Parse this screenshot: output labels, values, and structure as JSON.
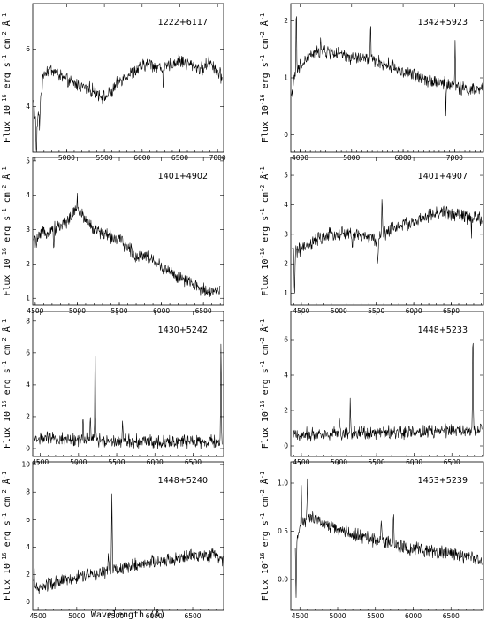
{
  "figure": {
    "y_axis_label": "Flux 10^-16 erg s^-1 cm^-2 Å^-1",
    "x_axis_label": "Wavelength (Å)"
  },
  "chart_data": [
    {
      "type": "line",
      "title": "1222+6117",
      "xlim": [
        4550,
        7080
      ],
      "ylim": [
        2.4,
        7.6
      ],
      "xticks": [
        5000,
        5500,
        6000,
        6500,
        7000
      ],
      "yticks": [
        4,
        6
      ],
      "x_tick_labels_shown": true,
      "series": [
        {
          "x": [
            4560,
            4600,
            4700,
            4800,
            4900,
            5000,
            5100,
            5200,
            5300,
            5400,
            5500,
            5600,
            5700,
            5800,
            5900,
            6000,
            6100,
            6200,
            6300,
            6400,
            6500,
            6600,
            6700,
            6800,
            6900,
            7000,
            7060
          ],
          "y": [
            4.2,
            3.2,
            5.2,
            5.3,
            5.1,
            4.9,
            4.8,
            4.7,
            4.6,
            4.5,
            4.3,
            4.5,
            4.9,
            5.1,
            5.2,
            5.4,
            5.5,
            5.4,
            5.3,
            5.5,
            5.6,
            5.5,
            5.4,
            5.3,
            5.6,
            5.2,
            5.0
          ]
        }
      ],
      "features": [
        {
          "x": 4600,
          "d": -1.4
        },
        {
          "x": 4640,
          "d": -0.8
        },
        {
          "x": 6280,
          "d": -0.5
        }
      ]
    },
    {
      "type": "line",
      "title": "1342+5923",
      "xlim": [
        3820,
        7560
      ],
      "ylim": [
        -0.3,
        2.3
      ],
      "xticks": [
        4000,
        5000,
        6000,
        7000
      ],
      "yticks": [
        0,
        1,
        2
      ],
      "x_tick_labels_shown": true,
      "series": [
        {
          "x": [
            3830,
            3900,
            4000,
            4200,
            4400,
            4600,
            4800,
            5000,
            5200,
            5400,
            5600,
            5800,
            6000,
            6200,
            6400,
            6600,
            6800,
            7000,
            7200,
            7400,
            7540
          ],
          "y": [
            0.7,
            1.0,
            1.2,
            1.4,
            1.45,
            1.45,
            1.4,
            1.35,
            1.35,
            1.3,
            1.25,
            1.2,
            1.1,
            1.05,
            1.0,
            0.95,
            0.9,
            0.85,
            0.8,
            0.78,
            0.8
          ]
        }
      ],
      "features": [
        {
          "x": 3927,
          "d": 1.2
        },
        {
          "x": 5369,
          "d": 0.6
        },
        {
          "x": 7011,
          "d": 0.8
        },
        {
          "x": 4400,
          "d": 0.3
        },
        {
          "x": 6830,
          "d": -0.5
        }
      ]
    },
    {
      "type": "line",
      "title": "1401+4902",
      "xlim": [
        4470,
        6740
      ],
      "ylim": [
        0.8,
        5.1
      ],
      "xticks": [
        4500,
        5000,
        5500,
        6000,
        6500
      ],
      "yticks": [
        1,
        2,
        3,
        4,
        5
      ],
      "x_tick_labels_shown": true,
      "series": [
        {
          "x": [
            4480,
            4600,
            4700,
            4800,
            4900,
            5000,
            5100,
            5200,
            5300,
            5400,
            5500,
            5600,
            5700,
            5800,
            5900,
            6000,
            6100,
            6200,
            6300,
            6400,
            6500,
            6600,
            6700
          ],
          "y": [
            2.6,
            2.9,
            3.0,
            3.1,
            3.3,
            3.6,
            3.3,
            3.0,
            2.9,
            2.8,
            2.7,
            2.5,
            2.2,
            2.3,
            2.1,
            1.9,
            1.8,
            1.6,
            1.5,
            1.35,
            1.25,
            1.2,
            1.25
          ]
        }
      ],
      "features": [
        {
          "x": 5000,
          "d": 0.4
        },
        {
          "x": 4720,
          "d": -0.5
        }
      ]
    },
    {
      "type": "line",
      "title": "1401+4907",
      "xlim": [
        4360,
        6930
      ],
      "ylim": [
        0.6,
        5.6
      ],
      "xticks": [
        4500,
        5000,
        5500,
        6000,
        6500
      ],
      "yticks": [
        1,
        2,
        3,
        4,
        5
      ],
      "x_tick_labels_shown": true,
      "series": [
        {
          "x": [
            4380,
            4500,
            4600,
            4700,
            4800,
            4900,
            5000,
            5100,
            5200,
            5300,
            5400,
            5500,
            5600,
            5700,
            5800,
            5900,
            6000,
            6100,
            6200,
            6300,
            6400,
            6500,
            6600,
            6700,
            6800,
            6910
          ],
          "y": [
            2.4,
            2.5,
            2.6,
            2.8,
            2.9,
            3.0,
            3.0,
            3.05,
            3.0,
            2.95,
            2.9,
            2.8,
            3.0,
            3.2,
            3.3,
            3.35,
            3.4,
            3.5,
            3.6,
            3.7,
            3.75,
            3.7,
            3.65,
            3.6,
            3.55,
            3.5
          ]
        }
      ],
      "features": [
        {
          "x": 4410,
          "d": -1.5
        },
        {
          "x": 5577,
          "d": 1.4
        },
        {
          "x": 5520,
          "d": -1.0
        },
        {
          "x": 5180,
          "d": -0.6
        },
        {
          "x": 6770,
          "d": -0.5
        }
      ]
    },
    {
      "type": "line",
      "title": "1430+5242",
      "xlim": [
        4400,
        6900
      ],
      "ylim": [
        -0.5,
        8.6
      ],
      "xticks": [
        4500,
        5000,
        5500,
        6000,
        6500
      ],
      "yticks": [
        0,
        2,
        4,
        6,
        8
      ],
      "x_tick_labels_shown": true,
      "series": [
        {
          "x": [
            4420,
            4600,
            4800,
            5000,
            5200,
            5400,
            5600,
            5800,
            6000,
            6200,
            6400,
            6600,
            6800,
            6880
          ],
          "y": [
            0.6,
            0.6,
            0.6,
            0.55,
            0.55,
            0.5,
            0.5,
            0.45,
            0.45,
            0.45,
            0.45,
            0.4,
            0.4,
            0.4
          ]
        }
      ],
      "features": [
        {
          "x": 5155,
          "d": 1.9
        },
        {
          "x": 5217,
          "d": 6.0
        },
        {
          "x": 5060,
          "d": 1.5
        },
        {
          "x": 5577,
          "d": 1.1
        },
        {
          "x": 6865,
          "d": 6.3
        }
      ]
    },
    {
      "type": "line",
      "title": "1448+5233",
      "xlim": [
        4360,
        6920
      ],
      "ylim": [
        -0.6,
        7.6
      ],
      "xticks": [
        4500,
        5000,
        5500,
        6000,
        6500
      ],
      "yticks": [
        0,
        2,
        4,
        6
      ],
      "x_tick_labels_shown": true,
      "series": [
        {
          "x": [
            4380,
            4600,
            4800,
            5000,
            5200,
            5400,
            5600,
            5800,
            6000,
            6200,
            6400,
            6600,
            6800,
            6900
          ],
          "y": [
            0.6,
            0.65,
            0.7,
            0.7,
            0.75,
            0.75,
            0.75,
            0.8,
            0.8,
            0.8,
            0.85,
            0.85,
            0.85,
            0.85
          ]
        }
      ],
      "features": [
        {
          "x": 5007,
          "d": 0.9
        },
        {
          "x": 5150,
          "d": 1.7
        },
        {
          "x": 6780,
          "d": 5.5
        }
      ]
    },
    {
      "type": "line",
      "title": "1448+5240",
      "xlim": [
        4430,
        6900
      ],
      "ylim": [
        -0.6,
        10.2
      ],
      "xticks": [
        4500,
        5000,
        5500,
        6000,
        6500
      ],
      "yticks": [
        0,
        2,
        4,
        6,
        8,
        10
      ],
      "x_tick_labels_shown": true,
      "series": [
        {
          "x": [
            4440,
            4600,
            4800,
            5000,
            5200,
            5400,
            5600,
            5800,
            6000,
            6200,
            6400,
            6600,
            6800,
            6890
          ],
          "y": [
            0.9,
            1.2,
            1.5,
            1.8,
            2.0,
            2.2,
            2.5,
            2.7,
            2.9,
            3.1,
            3.3,
            3.4,
            3.4,
            3.0
          ]
        }
      ],
      "features": [
        {
          "x": 5455,
          "d": 5.8
        },
        {
          "x": 5410,
          "d": 1.5
        },
        {
          "x": 4450,
          "d": 1.4
        }
      ]
    },
    {
      "type": "line",
      "title": "1453+5239",
      "xlim": [
        4380,
        6930
      ],
      "ylim": [
        -0.32,
        1.22
      ],
      "xticks": [
        4500,
        5000,
        5500,
        6000,
        6500
      ],
      "yticks": [
        0.0,
        0.5,
        1.0
      ],
      "x_tick_labels_shown": true,
      "series": [
        {
          "x": [
            4440,
            4500,
            4600,
            4700,
            4800,
            4900,
            5000,
            5100,
            5200,
            5300,
            5400,
            5500,
            5600,
            5700,
            5800,
            5900,
            6000,
            6200,
            6400,
            6600,
            6800,
            6910
          ],
          "y": [
            0.3,
            0.55,
            0.65,
            0.62,
            0.58,
            0.55,
            0.52,
            0.5,
            0.47,
            0.45,
            0.43,
            0.4,
            0.4,
            0.38,
            0.35,
            0.33,
            0.32,
            0.3,
            0.28,
            0.25,
            0.22,
            0.2
          ]
        }
      ],
      "features": [
        {
          "x": 4450,
          "d": -0.55
        },
        {
          "x": 4520,
          "d": 0.4
        },
        {
          "x": 4600,
          "d": 0.35
        },
        {
          "x": 5577,
          "d": 0.25
        },
        {
          "x": 5740,
          "d": 0.3
        }
      ]
    }
  ]
}
